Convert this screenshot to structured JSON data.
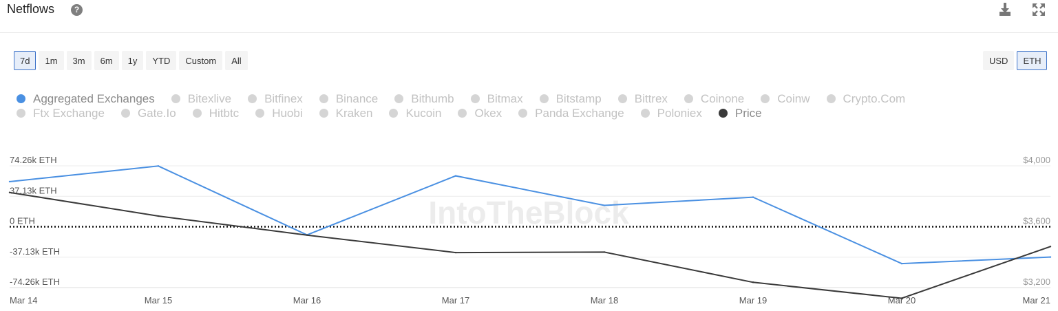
{
  "header": {
    "title": "Netflows",
    "help_icon": "question-circle-icon",
    "download_icon": "download-icon",
    "expand_icon": "expand-icon"
  },
  "range_buttons": [
    {
      "label": "7d",
      "active": true
    },
    {
      "label": "1m",
      "active": false
    },
    {
      "label": "3m",
      "active": false
    },
    {
      "label": "6m",
      "active": false
    },
    {
      "label": "1y",
      "active": false
    },
    {
      "label": "YTD",
      "active": false
    },
    {
      "label": "Custom",
      "active": false
    },
    {
      "label": "All",
      "active": false
    }
  ],
  "currency_buttons": [
    {
      "label": "USD",
      "active": false
    },
    {
      "label": "ETH",
      "active": true
    }
  ],
  "legend": {
    "rows": [
      [
        {
          "label": "Aggregated Exchanges",
          "enabled": true,
          "color": "#4a90e2"
        },
        {
          "label": "Bitexlive",
          "enabled": false
        },
        {
          "label": "Bitfinex",
          "enabled": false
        },
        {
          "label": "Binance",
          "enabled": false
        },
        {
          "label": "Bithumb",
          "enabled": false
        },
        {
          "label": "Bitmax",
          "enabled": false
        },
        {
          "label": "Bitstamp",
          "enabled": false
        },
        {
          "label": "Bittrex",
          "enabled": false
        },
        {
          "label": "Coinone",
          "enabled": false
        },
        {
          "label": "Coinw",
          "enabled": false
        },
        {
          "label": "Crypto.Com",
          "enabled": false
        }
      ],
      [
        {
          "label": "Ftx Exchange",
          "enabled": false
        },
        {
          "label": "Gate.Io",
          "enabled": false
        },
        {
          "label": "Hitbtc",
          "enabled": false
        },
        {
          "label": "Huobi",
          "enabled": false
        },
        {
          "label": "Kraken",
          "enabled": false
        },
        {
          "label": "Kucoin",
          "enabled": false
        },
        {
          "label": "Okex",
          "enabled": false
        },
        {
          "label": "Panda Exchange",
          "enabled": false
        },
        {
          "label": "Poloniex",
          "enabled": false
        },
        {
          "label": "Price",
          "enabled": true,
          "color": "#3a3a3a"
        }
      ]
    ]
  },
  "watermark": "IntoTheBlock",
  "chart_data": {
    "type": "line",
    "x": [
      "Mar 14",
      "Mar 15",
      "Mar 16",
      "Mar 17",
      "Mar 18",
      "Mar 19",
      "Mar 20",
      "Mar 21"
    ],
    "y_left": {
      "ticks": [
        74260,
        37130,
        0,
        -37130,
        -74260
      ],
      "tick_labels": [
        "74.26k ETH",
        "37.13k ETH",
        "0 ETH",
        "-37.13k ETH",
        "-74.26k ETH"
      ],
      "range": [
        -74260,
        74260
      ]
    },
    "y_right": {
      "ticks": [
        4000,
        3600,
        3200
      ],
      "tick_labels": [
        "$4,000",
        "$3,600",
        "$3,200"
      ],
      "range": [
        3200,
        4000
      ]
    },
    "series": [
      {
        "name": "Aggregated Exchanges",
        "axis": "left",
        "color": "#4a90e2",
        "values": [
          55000,
          74000,
          -10000,
          62000,
          26000,
          36000,
          -45000,
          -37000
        ]
      },
      {
        "name": "Price",
        "axis": "right",
        "color": "#3a3a3a",
        "values": [
          3825,
          3670,
          3545,
          3430,
          3433,
          3235,
          3130,
          3470
        ]
      }
    ],
    "zero_line": "dotted",
    "grid": true
  }
}
